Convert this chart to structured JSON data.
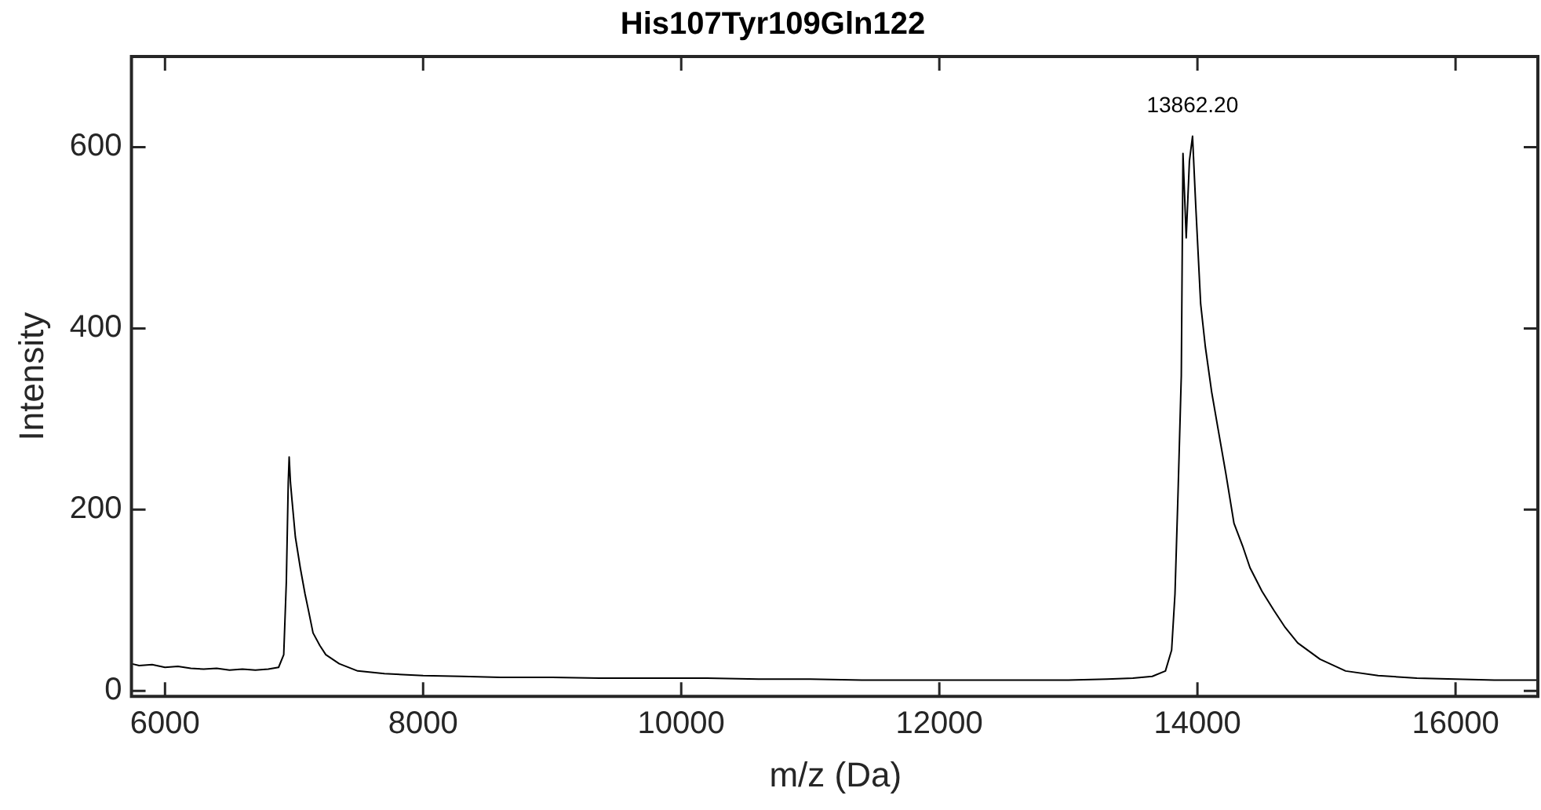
{
  "chart_data": {
    "type": "line",
    "title": "His107Tyr109Gln122",
    "xlabel": "m/z (Da)",
    "ylabel": "Intensity",
    "xlim": [
      5740,
      16650
    ],
    "ylim": [
      -6,
      700
    ],
    "xticks": [
      6000,
      8000,
      10000,
      12000,
      14000,
      16000
    ],
    "yticks": [
      0,
      200,
      400,
      600
    ],
    "grid": false,
    "legend": false,
    "marker": "none",
    "line_style": "solid",
    "annotations": [
      "13862.20"
    ],
    "series": [
      {
        "color": "#000000",
        "x": [
          5740,
          5800,
          5900,
          6000,
          6100,
          6200,
          6300,
          6400,
          6500,
          6600,
          6700,
          6800,
          6880,
          6920,
          6940,
          6955,
          6962,
          6972,
          6985,
          7010,
          7048,
          7085,
          7110,
          7147,
          7200,
          7246,
          7350,
          7493,
          7700,
          8000,
          8300,
          8600,
          9000,
          9400,
          9800,
          10200,
          10600,
          11000,
          11400,
          11800,
          12200,
          12600,
          13000,
          13300,
          13500,
          13650,
          13752,
          13800,
          13826,
          13850,
          13875,
          13888,
          13913,
          13938,
          13962,
          13987,
          14025,
          14061,
          14110,
          14160,
          14220,
          14283,
          14350,
          14407,
          14500,
          14592,
          14680,
          14777,
          14950,
          15148,
          15400,
          15700,
          16000,
          16300,
          16650
        ],
        "values": [
          30,
          28,
          29,
          26,
          27,
          25,
          24,
          25,
          23,
          24,
          23,
          24,
          26,
          40,
          120,
          230,
          258,
          230,
          209,
          170,
          136,
          107,
          90,
          64,
          50,
          40,
          30,
          22,
          19,
          17,
          16,
          15,
          15,
          14,
          14,
          14,
          13,
          13,
          12,
          12,
          12,
          12,
          12,
          13,
          14,
          16,
          22,
          45,
          107,
          220,
          348,
          593,
          500,
          585,
          612,
          535,
          427,
          380,
          330,
          289,
          240,
          185,
          160,
          136,
          110,
          89,
          70,
          53,
          35,
          22,
          17,
          14,
          13,
          12,
          12
        ]
      }
    ]
  }
}
